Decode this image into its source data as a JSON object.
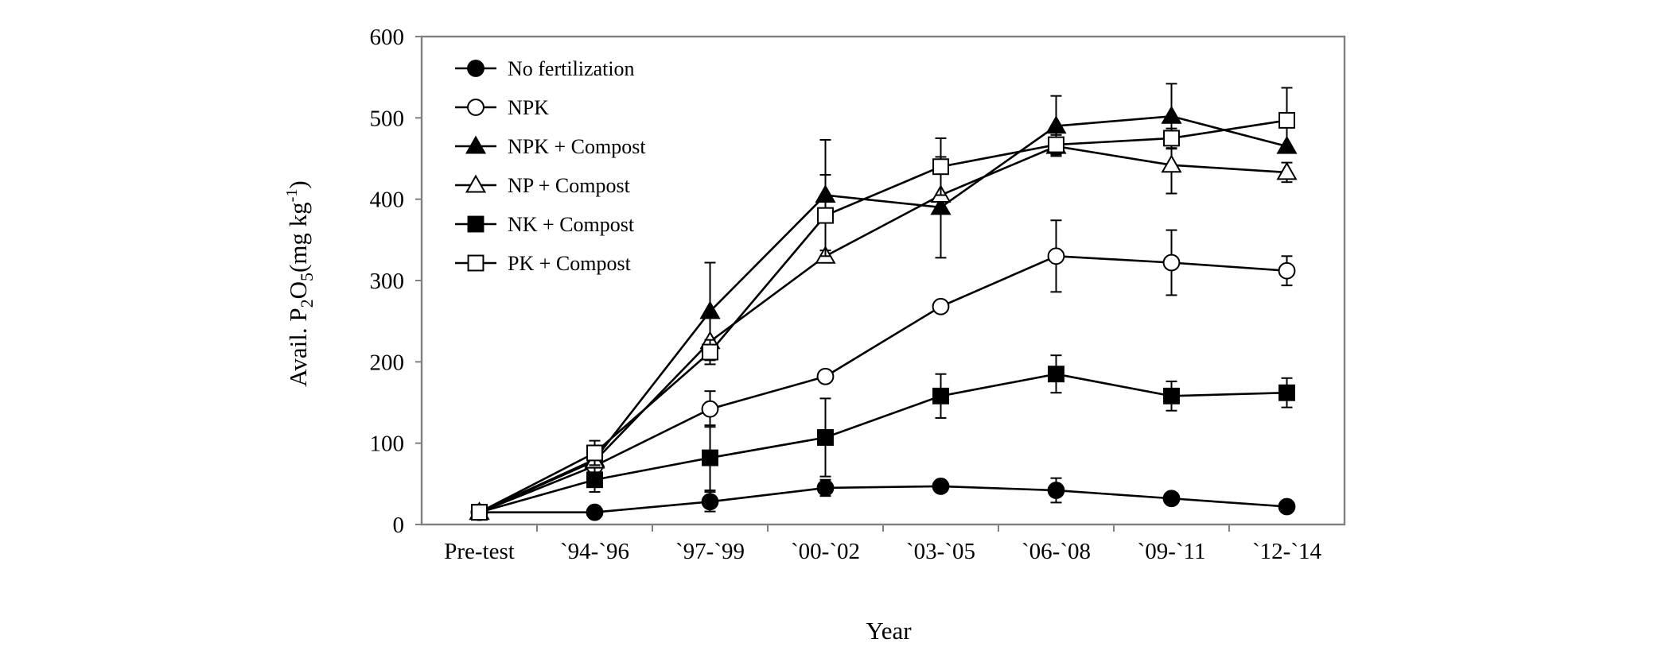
{
  "chart_data": {
    "type": "line",
    "title": "",
    "xlabel": "Year",
    "ylabel": "Avail. P",
    "ylabel_sub1": "2",
    "ylabel_mid": "O",
    "ylabel_sub2": "5",
    "ylabel_unit": "(mg kg",
    "ylabel_sup": "-1",
    "ylabel_close": ")",
    "ylim": [
      0,
      600
    ],
    "yticks": [
      0,
      100,
      200,
      300,
      400,
      500,
      600
    ],
    "grid": false,
    "legend_position": "top-left",
    "categories": [
      "Pre-test",
      "`94-`96",
      "`97-`99",
      "`00-`02",
      "`03-`05",
      "`06-`08",
      "`09-`11",
      "`12-`14"
    ],
    "series": [
      {
        "name": "No fertilization",
        "marker": "circle",
        "fill": "black",
        "values": [
          15,
          15,
          28,
          45,
          47,
          42,
          32,
          22
        ],
        "errors": [
          0,
          0,
          12,
          10,
          0,
          15,
          0,
          0
        ]
      },
      {
        "name": "NPK",
        "marker": "circle",
        "fill": "white",
        "values": [
          15,
          72,
          142,
          182,
          268,
          330,
          322,
          312
        ],
        "errors": [
          0,
          0,
          22,
          0,
          0,
          44,
          40,
          18
        ]
      },
      {
        "name": "NPK + Compost",
        "marker": "triangle",
        "fill": "black",
        "values": [
          15,
          80,
          262,
          405,
          390,
          490,
          502,
          465
        ],
        "errors": [
          0,
          0,
          60,
          68,
          62,
          37,
          40,
          0
        ]
      },
      {
        "name": "NP + Compost",
        "marker": "triangle",
        "fill": "white",
        "values": [
          15,
          78,
          225,
          330,
          405,
          465,
          442,
          433
        ],
        "errors": [
          0,
          0,
          0,
          0,
          0,
          0,
          35,
          12
        ]
      },
      {
        "name": "NK + Compost",
        "marker": "square",
        "fill": "black",
        "values": [
          15,
          55,
          82,
          107,
          158,
          185,
          158,
          162
        ],
        "errors": [
          0,
          15,
          40,
          48,
          27,
          23,
          18,
          18
        ]
      },
      {
        "name": "PK + Compost",
        "marker": "square",
        "fill": "white",
        "values": [
          15,
          88,
          212,
          380,
          440,
          467,
          475,
          497
        ],
        "errors": [
          0,
          15,
          15,
          50,
          35,
          12,
          12,
          40
        ]
      }
    ]
  }
}
